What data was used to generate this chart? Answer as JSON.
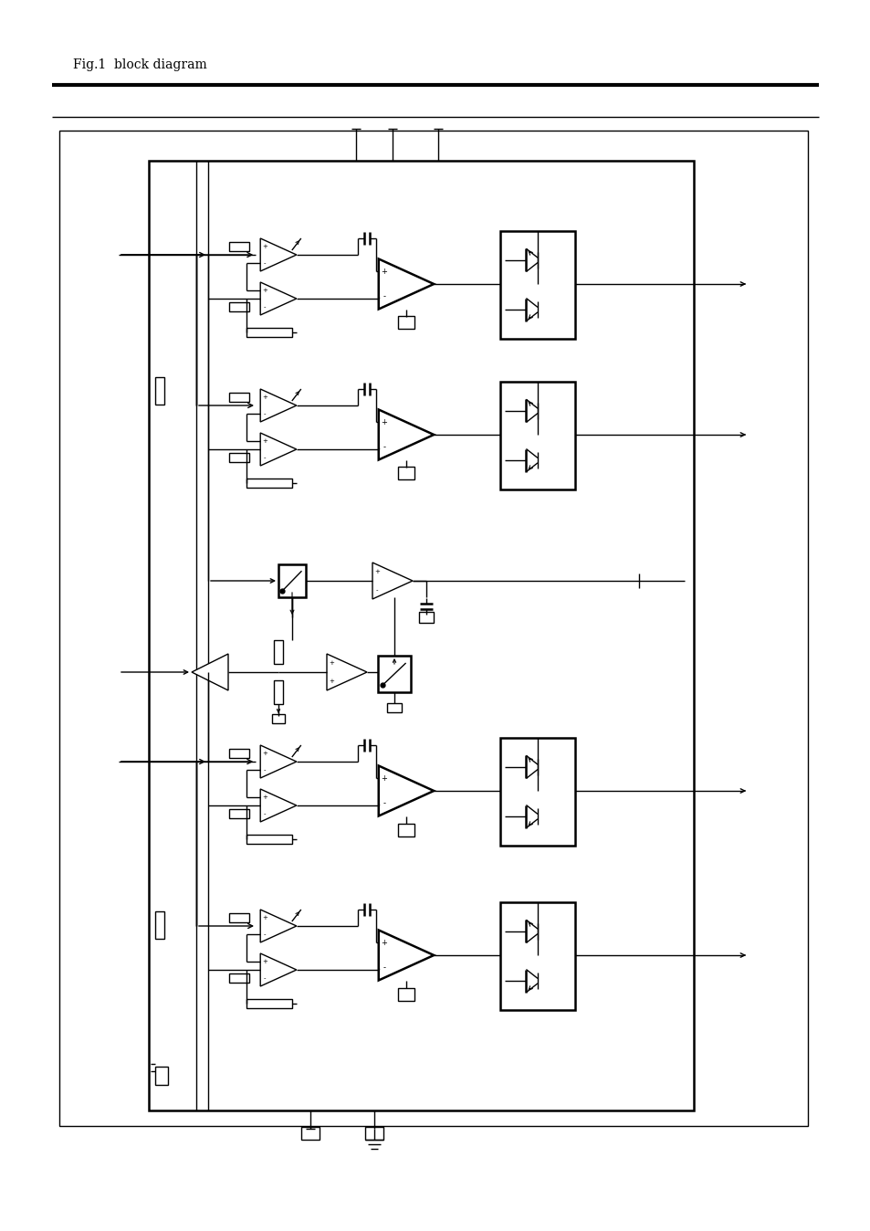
{
  "bg_color": "#ffffff",
  "line_color": "#000000",
  "fig_width": 9.54,
  "fig_height": 13.48,
  "dpi": 100
}
